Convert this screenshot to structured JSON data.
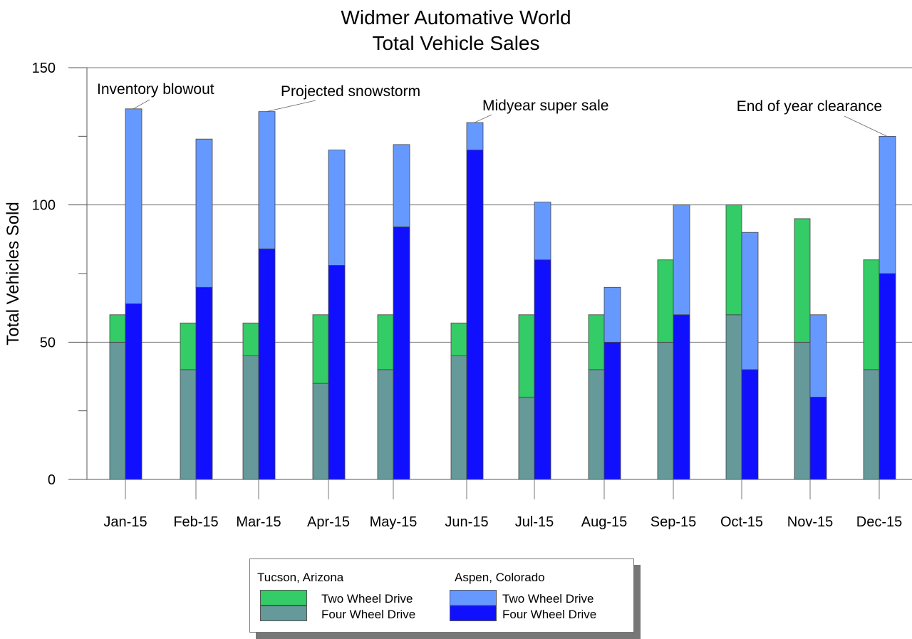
{
  "chart_data": {
    "type": "bar",
    "stacked": true,
    "title": [
      "Widmer Automative World",
      "Total Vehicle Sales"
    ],
    "ylabel": "Total Vehicles Sold",
    "xlabel": "",
    "ylim": [
      0,
      150
    ],
    "yticks": [
      0,
      50,
      100,
      150
    ],
    "yminor_ticks": [
      25,
      75,
      125
    ],
    "grid": true,
    "categories": [
      "Jan-15",
      "Feb-15",
      "Mar-15",
      "Apr-15",
      "May-15",
      "Jun-15",
      "Jul-15",
      "Aug-15",
      "Sep-15",
      "Oct-15",
      "Nov-15",
      "Dec-15"
    ],
    "groups": [
      {
        "name": "Tucson, Arizona",
        "series": [
          {
            "name": "Four Wheel Drive",
            "color": "#669999",
            "values": [
              50,
              40,
              45,
              35,
              40,
              45,
              30,
              40,
              50,
              60,
              50,
              40
            ]
          },
          {
            "name": "Two Wheel Drive",
            "color": "#33cc66",
            "values": [
              10,
              17,
              12,
              25,
              20,
              12,
              30,
              20,
              30,
              40,
              45,
              40
            ]
          }
        ]
      },
      {
        "name": "Aspen, Colorado",
        "series": [
          {
            "name": "Four Wheel Drive",
            "color": "#1010ff",
            "values": [
              64,
              70,
              84,
              78,
              92,
              120,
              80,
              50,
              60,
              40,
              30,
              75
            ]
          },
          {
            "name": "Two Wheel Drive",
            "color": "#6699ff",
            "values": [
              71,
              54,
              50,
              42,
              30,
              10,
              21,
              20,
              40,
              50,
              30,
              50
            ]
          }
        ]
      }
    ],
    "annotations": [
      {
        "text": "Inventory blowout",
        "category": "Jan-15",
        "group": "Aspen, Colorado"
      },
      {
        "text": "Projected snowstorm",
        "category": "Mar-15",
        "group": "Aspen, Colorado"
      },
      {
        "text": "Midyear super sale",
        "category": "Jun-15",
        "group": "Aspen, Colorado"
      },
      {
        "text": "End of year clearance",
        "category": "Dec-15",
        "group": "Aspen, Colorado"
      }
    ],
    "legend": {
      "placement": "bottom",
      "groups": [
        {
          "title": "Tucson, Arizona",
          "items": [
            {
              "label": "Two Wheel Drive",
              "color": "#33cc66"
            },
            {
              "label": "Four Wheel Drive",
              "color": "#669999"
            }
          ]
        },
        {
          "title": "Aspen, Colorado",
          "items": [
            {
              "label": "Two Wheel Drive",
              "color": "#6699ff"
            },
            {
              "label": "Four Wheel Drive",
              "color": "#1010ff"
            }
          ]
        }
      ]
    }
  }
}
